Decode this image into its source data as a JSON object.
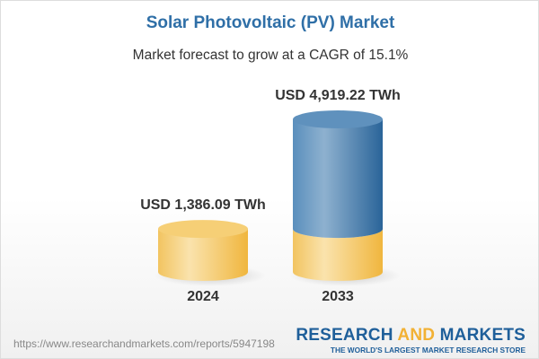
{
  "title": "Solar Photovoltaic (PV) Market",
  "subtitle": "Market forecast to grow at a CAGR of 15.1%",
  "footer": {
    "url": "https://www.researchandmarkets.com/reports/5947198",
    "logo": {
      "word1": "RESEARCH",
      "word2": "AND",
      "word3": "MARKETS",
      "tagline": "THE WORLD'S LARGEST MARKET RESEARCH STORE"
    }
  },
  "colors": {
    "title": "#2f6fa7",
    "base_yellow": "#f2b134",
    "growth_blue": "#2f6fa7"
  },
  "chart_data": {
    "type": "bar",
    "style": "3d-cylinder",
    "categories": [
      "2024",
      "2033"
    ],
    "values": [
      1386.09,
      4919.22
    ],
    "labels": [
      "USD 1,386.09 TWh",
      "USD 4,919.22 TWh"
    ],
    "cagr": "15.1%"
  }
}
